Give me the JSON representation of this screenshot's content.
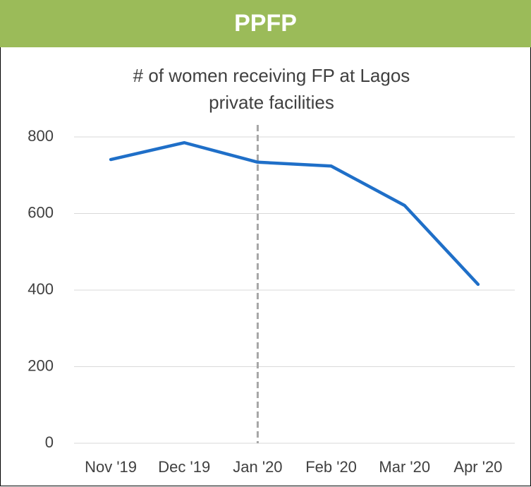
{
  "header": {
    "title": "PPFP",
    "color": "#9bbb59"
  },
  "chart_data": {
    "type": "line",
    "title": "# of women receiving FP at Lagos private facilities",
    "categories": [
      "Nov '19",
      "Dec '19",
      "Jan '20",
      "Feb '20",
      "Mar '20",
      "Apr '20"
    ],
    "series": [
      {
        "name": "PPFP",
        "color": "#1f6fc8",
        "values": [
          741,
          785,
          734,
          724,
          621,
          415
        ]
      }
    ],
    "ylim": [
      0,
      800
    ],
    "yticks": [
      0,
      200,
      400,
      600,
      800
    ],
    "grid": true,
    "vline": {
      "x": "Jan '20",
      "color": "#a6a6a6",
      "style": "dashed"
    }
  }
}
